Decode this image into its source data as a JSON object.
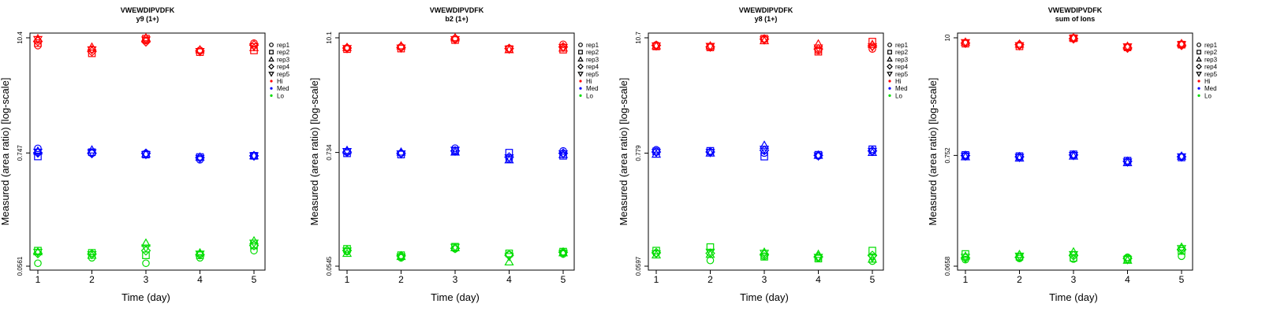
{
  "legend": {
    "shapes": [
      {
        "label": "rep1",
        "shape": "circle"
      },
      {
        "label": "rep2",
        "shape": "square"
      },
      {
        "label": "rep3",
        "shape": "triangle-up"
      },
      {
        "label": "rep4",
        "shape": "diamond"
      },
      {
        "label": "rep5",
        "shape": "triangle-down"
      }
    ],
    "colors": [
      {
        "label": "Hi",
        "color": "#ff0000"
      },
      {
        "label": "Med",
        "color": "#0000ff"
      },
      {
        "label": "Lo",
        "color": "#00dd00"
      }
    ]
  },
  "chart_data": [
    {
      "type": "scatter",
      "title": "VWEWDIPVDFK",
      "subtitle": "y9 (1+)",
      "xlabel": "Time (day)",
      "ylabel": "Measured (area ratio) [log-scale]",
      "x": [
        1,
        2,
        3,
        4,
        5
      ],
      "y_scale": "log",
      "ylim": [
        0.0561,
        10.4
      ],
      "yticks": [
        0.0561,
        0.747,
        10.4
      ],
      "ytick_labels": [
        "0.0561",
        "0.747",
        "10.4"
      ],
      "series": [
        {
          "name": "Hi",
          "color": "#ff0000",
          "reps": [
            [
              8.7,
              8.0,
              9.8,
              7.8,
              9.2
            ],
            [
              9.2,
              7.3,
              10.2,
              7.5,
              7.8
            ],
            [
              10.2,
              8.4,
              10.4,
              7.9,
              8.3
            ],
            [
              9.6,
              7.6,
              9.5,
              7.7,
              8.8
            ],
            [
              10.0,
              7.9,
              9.9,
              7.6,
              8.5
            ]
          ]
        },
        {
          "name": "Med",
          "color": "#0000ff",
          "reps": [
            [
              0.83,
              0.74,
              0.74,
              0.64,
              0.7
            ],
            [
              0.69,
              0.76,
              0.72,
              0.68,
              0.7
            ],
            [
              0.78,
              0.8,
              0.73,
              0.68,
              0.7
            ],
            [
              0.75,
              0.74,
              0.74,
              0.67,
              0.7
            ],
            [
              0.76,
              0.75,
              0.72,
              0.66,
              0.7
            ]
          ]
        },
        {
          "name": "Lo",
          "color": "#00dd00",
          "reps": [
            [
              0.06,
              0.068,
              0.06,
              0.068,
              0.08
            ],
            [
              0.08,
              0.076,
              0.072,
              0.072,
              0.09
            ],
            [
              0.078,
              0.072,
              0.095,
              0.076,
              0.1
            ],
            [
              0.075,
              0.074,
              0.08,
              0.073,
              0.09
            ],
            [
              0.077,
              0.073,
              0.085,
              0.074,
              0.095
            ]
          ]
        }
      ]
    },
    {
      "type": "scatter",
      "title": "VWEWDIPVDFK",
      "subtitle": "b2 (1+)",
      "xlabel": "Time (day)",
      "ylabel": "Measured (area ratio) [log-scale]",
      "x": [
        1,
        2,
        3,
        4,
        5
      ],
      "y_scale": "log",
      "ylim": [
        0.0545,
        10.1
      ],
      "yticks": [
        0.0545,
        0.734,
        10.1
      ],
      "ytick_labels": [
        "0.0545",
        "0.734",
        "10.1"
      ],
      "series": [
        {
          "name": "Hi",
          "color": "#ff0000",
          "reps": [
            [
              8.0,
              8.2,
              9.9,
              7.9,
              8.7
            ],
            [
              7.8,
              7.9,
              9.6,
              7.8,
              7.7
            ],
            [
              8.1,
              8.4,
              10.1,
              7.7,
              8.0
            ],
            [
              8.0,
              8.1,
              9.8,
              7.9,
              8.2
            ],
            [
              7.9,
              8.0,
              9.7,
              7.8,
              8.1
            ]
          ]
        },
        {
          "name": "Med",
          "color": "#0000ff",
          "reps": [
            [
              0.74,
              0.72,
              0.81,
              0.63,
              0.76
            ],
            [
              0.72,
              0.7,
              0.76,
              0.73,
              0.68
            ],
            [
              0.77,
              0.74,
              0.74,
              0.62,
              0.7
            ],
            [
              0.74,
              0.72,
              0.76,
              0.66,
              0.72
            ],
            [
              0.75,
              0.71,
              0.77,
              0.65,
              0.71
            ]
          ]
        },
        {
          "name": "Lo",
          "color": "#00dd00",
          "reps": [
            [
              0.076,
              0.066,
              0.081,
              0.071,
              0.072
            ],
            [
              0.081,
              0.07,
              0.085,
              0.073,
              0.076
            ],
            [
              0.073,
              0.068,
              0.083,
              0.06,
              0.074
            ],
            [
              0.078,
              0.069,
              0.082,
              0.07,
              0.075
            ],
            [
              0.077,
              0.067,
              0.084,
              0.068,
              0.073
            ]
          ]
        }
      ]
    },
    {
      "type": "scatter",
      "title": "VWEWDIPVDFK",
      "subtitle": "y8 (1+)",
      "xlabel": "Time (day)",
      "ylabel": "Measured (area ratio) [log-scale]",
      "x": [
        1,
        2,
        3,
        4,
        5
      ],
      "y_scale": "log",
      "ylim": [
        0.0597,
        10.7
      ],
      "yticks": [
        0.0597,
        0.779,
        10.7
      ],
      "ytick_labels": [
        "0.0597",
        "0.779",
        "10.7"
      ],
      "series": [
        {
          "name": "Hi",
          "color": "#ff0000",
          "reps": [
            [
              9.1,
              8.7,
              10.3,
              8.0,
              8.3
            ],
            [
              8.8,
              8.6,
              10.5,
              7.8,
              9.8
            ],
            [
              8.9,
              8.9,
              10.0,
              9.3,
              9.2
            ],
            [
              9.0,
              8.7,
              10.4,
              8.3,
              8.9
            ],
            [
              8.9,
              8.8,
              10.2,
              8.5,
              8.7
            ]
          ]
        },
        {
          "name": "Med",
          "color": "#0000ff",
          "reps": [
            [
              0.84,
              0.8,
              0.78,
              0.73,
              0.81
            ],
            [
              0.81,
              0.82,
              0.72,
              0.75,
              0.85
            ],
            [
              0.76,
              0.78,
              0.93,
              0.74,
              0.79
            ],
            [
              0.8,
              0.8,
              0.83,
              0.74,
              0.82
            ],
            [
              0.79,
              0.79,
              0.85,
              0.73,
              0.81
            ]
          ]
        },
        {
          "name": "Lo",
          "color": "#00dd00",
          "reps": [
            [
              0.08,
              0.068,
              0.075,
              0.072,
              0.067
            ],
            [
              0.085,
              0.092,
              0.074,
              0.071,
              0.085
            ],
            [
              0.077,
              0.078,
              0.082,
              0.078,
              0.07
            ],
            [
              0.081,
              0.08,
              0.078,
              0.074,
              0.076
            ],
            [
              0.079,
              0.082,
              0.08,
              0.073,
              0.072
            ]
          ]
        }
      ]
    },
    {
      "type": "scatter",
      "title": "VWEWDIPVDFK",
      "subtitle": "sum of Ions",
      "xlabel": "Time (day)",
      "ylabel": "Measured (area ratio) [log-scale]",
      "x": [
        1,
        2,
        3,
        4,
        5
      ],
      "y_scale": "log",
      "ylim": [
        0.0658,
        10
      ],
      "yticks": [
        0.0658,
        0.752,
        10
      ],
      "ytick_labels": [
        "0.0658",
        "0.752",
        "10"
      ],
      "series": [
        {
          "name": "Hi",
          "color": "#ff0000",
          "reps": [
            [
              9.0,
              8.5,
              10.0,
              8.2,
              8.7
            ],
            [
              8.8,
              8.3,
              9.9,
              8.1,
              8.6
            ],
            [
              9.1,
              8.7,
              10.0,
              8.3,
              8.8
            ],
            [
              8.9,
              8.6,
              9.8,
              8.0,
              8.5
            ],
            [
              9.0,
              8.4,
              9.9,
              8.2,
              8.6
            ]
          ]
        },
        {
          "name": "Med",
          "color": "#0000ff",
          "reps": [
            [
              0.74,
              0.72,
              0.75,
              0.65,
              0.73
            ],
            [
              0.76,
              0.74,
              0.77,
              0.67,
              0.72
            ],
            [
              0.73,
              0.71,
              0.74,
              0.64,
              0.74
            ],
            [
              0.75,
              0.73,
              0.76,
              0.66,
              0.73
            ],
            [
              0.74,
              0.72,
              0.75,
              0.65,
              0.73
            ]
          ]
        },
        {
          "name": "Lo",
          "color": "#00dd00",
          "reps": [
            [
              0.076,
              0.078,
              0.077,
              0.08,
              0.082
            ],
            [
              0.086,
              0.081,
              0.079,
              0.077,
              0.092
            ],
            [
              0.082,
              0.085,
              0.09,
              0.075,
              0.1
            ],
            [
              0.079,
              0.08,
              0.083,
              0.078,
              0.095
            ],
            [
              0.08,
              0.082,
              0.085,
              0.076,
              0.097
            ]
          ]
        }
      ]
    }
  ]
}
